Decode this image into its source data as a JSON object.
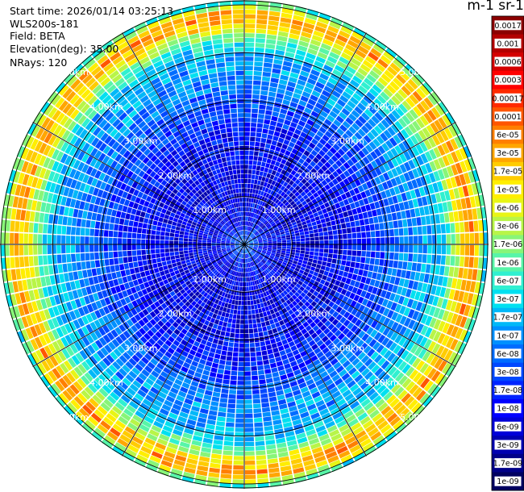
{
  "header": {
    "start_time": "Start time: 2026/01/14 03:25:13",
    "instrument": "WLS200s-181",
    "field": "Field: BETA",
    "elevation": "Elevation(deg): 35.00",
    "nrays": "NRays: 120"
  },
  "colorbar": {
    "unit_label": "m-1 sr-1",
    "labels": [
      "0.0017",
      "0.001",
      "0.0006",
      "0.0003",
      "0.00017",
      "0.0001",
      "6e-05",
      "3e-05",
      "1.7e-05",
      "1e-05",
      "6e-06",
      "3e-06",
      "1.7e-06",
      "1e-06",
      "6e-07",
      "3e-07",
      "1.7e-07",
      "1e-07",
      "6e-08",
      "3e-08",
      "1.7e-08",
      "1e-08",
      "6e-09",
      "3e-09",
      "1.7e-09",
      "1e-09"
    ],
    "colors": [
      "#8b0000",
      "#b30000",
      "#d40000",
      "#ff0000",
      "#ff2a00",
      "#ff5500",
      "#ff7f00",
      "#ffa600",
      "#ffcc00",
      "#ffee00",
      "#e8f516",
      "#b8f548",
      "#88f578",
      "#58f5a8",
      "#30f0d0",
      "#00e0f0",
      "#00b8f8",
      "#0090ff",
      "#006cff",
      "#0048ff",
      "#0024ff",
      "#0000ff",
      "#0000d8",
      "#0000b0",
      "#000088",
      "#000060"
    ]
  },
  "chart_data": {
    "type": "heatmap",
    "projection": "polar-ppi",
    "field": "BETA",
    "elevation_deg": 35.0,
    "n_rays": 120,
    "range_rings_km": [
      1,
      2,
      3,
      4,
      5
    ],
    "ring_labels": [
      "1.00km",
      "2.00km",
      "3.00km",
      "4.00km",
      "5.00km"
    ],
    "max_range_km": 5.1,
    "grid": true,
    "colorbar_scale": "log",
    "colorbar_range": [
      1e-09,
      0.0017
    ],
    "range_profile_km": [
      0.0,
      0.5,
      1.0,
      1.5,
      2.0,
      2.5,
      3.0,
      3.5,
      4.0,
      4.2,
      4.4,
      4.6,
      4.8,
      4.95,
      5.1
    ],
    "range_profile_beta": [
      1e-07,
      1.5e-08,
      1e-08,
      1e-08,
      1.2e-08,
      2e-08,
      5e-08,
      1.2e-07,
      2e-07,
      5e-07,
      3e-06,
      2e-05,
      6e-05,
      5e-06,
      3e-07
    ]
  }
}
